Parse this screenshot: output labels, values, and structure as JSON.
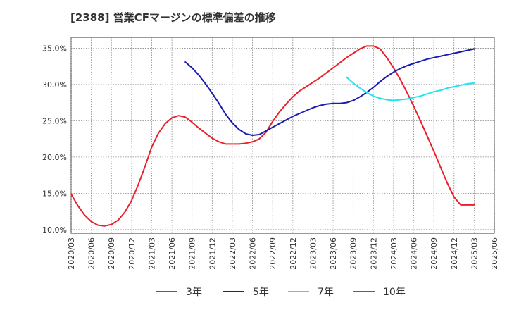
{
  "chart_data": {
    "type": "line",
    "title": "[2388]  営業CFマージンの標準偏差の推移",
    "x_ticks": [
      "2020/03",
      "2020/06",
      "2020/09",
      "2020/12",
      "2021/03",
      "2021/06",
      "2021/09",
      "2021/12",
      "2022/03",
      "2022/06",
      "2022/09",
      "2022/12",
      "2023/03",
      "2023/06",
      "2023/09",
      "2023/12",
      "2024/03",
      "2024/06",
      "2024/09",
      "2024/12",
      "2025/03",
      "2025/06"
    ],
    "y_ticks": [
      "10.0%",
      "15.0%",
      "20.0%",
      "25.0%",
      "30.0%",
      "35.0%"
    ],
    "y_tick_values": [
      10,
      15,
      20,
      25,
      30,
      35
    ],
    "ylim": [
      9.5,
      36.5
    ],
    "grid": true,
    "legend_position": "bottom",
    "series": [
      {
        "name": "3年",
        "color": "#e8202a",
        "x": [
          "2020/03",
          "2020/04",
          "2020/05",
          "2020/06",
          "2020/07",
          "2020/08",
          "2020/09",
          "2020/10",
          "2020/11",
          "2020/12",
          "2021/01",
          "2021/02",
          "2021/03",
          "2021/04",
          "2021/05",
          "2021/06",
          "2021/07",
          "2021/08",
          "2021/09",
          "2021/10",
          "2021/11",
          "2021/12",
          "2022/01",
          "2022/02",
          "2022/03",
          "2022/04",
          "2022/05",
          "2022/06",
          "2022/07",
          "2022/08",
          "2022/09",
          "2022/10",
          "2022/11",
          "2022/12",
          "2023/01",
          "2023/02",
          "2023/03",
          "2023/04",
          "2023/05",
          "2023/06",
          "2023/07",
          "2023/08",
          "2023/09",
          "2023/10",
          "2023/11",
          "2023/12",
          "2024/01",
          "2024/02",
          "2024/03",
          "2024/04",
          "2024/05",
          "2024/06",
          "2024/07",
          "2024/08",
          "2024/09",
          "2024/10",
          "2024/11",
          "2024/12",
          "2025/01",
          "2025/02",
          "2025/03"
        ],
        "values": [
          14.9,
          13.3,
          12.0,
          11.1,
          10.6,
          10.5,
          10.7,
          11.3,
          12.4,
          14.0,
          16.2,
          18.7,
          21.4,
          23.3,
          24.6,
          25.4,
          25.7,
          25.5,
          24.8,
          24.0,
          23.3,
          22.6,
          22.1,
          21.8,
          21.8,
          21.8,
          21.9,
          22.1,
          22.5,
          23.4,
          24.9,
          26.2,
          27.3,
          28.3,
          29.1,
          29.7,
          30.3,
          30.9,
          31.6,
          32.3,
          33.0,
          33.7,
          34.3,
          34.9,
          35.3,
          35.3,
          34.9,
          33.7,
          32.3,
          30.7,
          28.9,
          27.0,
          25.0,
          22.9,
          20.8,
          18.6,
          16.4,
          14.5,
          13.4,
          13.4,
          13.4
        ]
      },
      {
        "name": "5年",
        "color": "#1a1ab4",
        "x": [
          "2021/08",
          "2021/09",
          "2021/10",
          "2021/11",
          "2021/12",
          "2022/01",
          "2022/02",
          "2022/03",
          "2022/04",
          "2022/05",
          "2022/06",
          "2022/07",
          "2022/08",
          "2022/09",
          "2022/10",
          "2022/11",
          "2022/12",
          "2023/01",
          "2023/02",
          "2023/03",
          "2023/04",
          "2023/05",
          "2023/06",
          "2023/07",
          "2023/08",
          "2023/09",
          "2023/10",
          "2023/11",
          "2023/12",
          "2024/01",
          "2024/02",
          "2024/03",
          "2024/04",
          "2024/05",
          "2024/06",
          "2024/07",
          "2024/08",
          "2024/09",
          "2024/10",
          "2024/11",
          "2024/12",
          "2025/01",
          "2025/02",
          "2025/03"
        ],
        "values": [
          33.1,
          32.3,
          31.3,
          30.1,
          28.8,
          27.4,
          25.9,
          24.7,
          23.8,
          23.2,
          23.0,
          23.1,
          23.6,
          24.1,
          24.6,
          25.1,
          25.6,
          26.0,
          26.4,
          26.8,
          27.1,
          27.3,
          27.4,
          27.4,
          27.5,
          27.8,
          28.3,
          28.9,
          29.6,
          30.4,
          31.1,
          31.7,
          32.2,
          32.6,
          32.9,
          33.2,
          33.5,
          33.7,
          33.9,
          34.1,
          34.3,
          34.5,
          34.7,
          34.9
        ]
      },
      {
        "name": "7年",
        "color": "#22e4ee",
        "x": [
          "2023/08",
          "2023/09",
          "2023/10",
          "2023/11",
          "2023/12",
          "2024/01",
          "2024/02",
          "2024/03",
          "2024/04",
          "2024/05",
          "2024/06",
          "2024/07",
          "2024/08",
          "2024/09",
          "2024/10",
          "2024/11",
          "2024/12",
          "2025/01",
          "2025/02",
          "2025/03"
        ],
        "values": [
          31.0,
          30.2,
          29.5,
          28.9,
          28.4,
          28.1,
          27.9,
          27.8,
          27.9,
          28.0,
          28.2,
          28.4,
          28.7,
          29.0,
          29.2,
          29.5,
          29.7,
          29.9,
          30.1,
          30.2
        ]
      },
      {
        "name": "10年",
        "color": "#2a8a2a",
        "x": [],
        "values": []
      }
    ]
  }
}
